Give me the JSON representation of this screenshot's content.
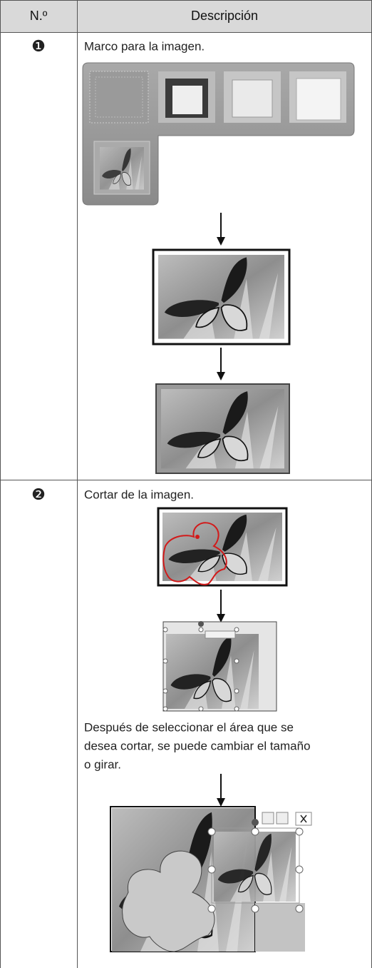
{
  "header": {
    "number": "N.º",
    "description": "Descripción"
  },
  "rows": [
    {
      "number": "❶",
      "caption": "Marco para la imagen."
    },
    {
      "number": "❷",
      "caption": "Cortar de la imagen.",
      "note_lines": [
        "Después de seleccionar el área que se",
        "desea cortar, se puede cambiar el tamaño",
        "o girar."
      ]
    }
  ]
}
